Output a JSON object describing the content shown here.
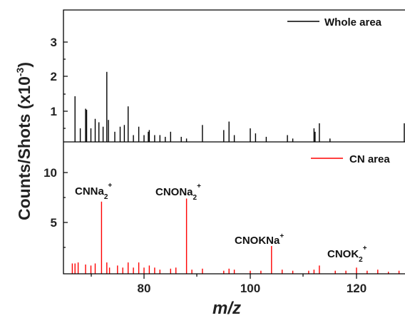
{
  "chart_data": {
    "type": "bar",
    "ylabel": "Counts/Shots (x10",
    "ylabel_sup": "-3",
    "ylabel_close": ")",
    "xlabel": "m/z",
    "xlim": [
      66,
      130
    ],
    "xticks": [
      "80",
      "100",
      "120"
    ],
    "grid": false,
    "panels": [
      {
        "name": "Whole area",
        "color": "#000000",
        "ylim": [
          0,
          3.9
        ],
        "yticks": [
          "1",
          "2",
          "3"
        ],
        "legend_label": "Whole area",
        "legend_position": "top-right",
        "x": [
          67.0,
          68.0,
          69.0,
          69.2,
          70.0,
          70.8,
          71.5,
          72.3,
          73.0,
          73.3,
          74.5,
          75.5,
          76.3,
          77.0,
          78.0,
          79.0,
          80.0,
          80.8,
          81.0,
          82.0,
          83.0,
          84.0,
          85.0,
          87.0,
          88.0,
          91.0,
          95.0,
          96.0,
          97.0,
          100.0,
          101.0,
          103.0,
          107.0,
          108.0,
          112.0,
          112.2,
          113.0,
          115.0,
          129.0
        ],
        "y": [
          1.35,
          0.4,
          0.98,
          0.95,
          0.4,
          0.68,
          0.58,
          0.45,
          2.07,
          0.65,
          0.3,
          0.45,
          0.5,
          1.05,
          0.2,
          0.45,
          0.2,
          0.3,
          0.35,
          0.2,
          0.2,
          0.15,
          0.3,
          0.15,
          0.1,
          0.5,
          0.35,
          0.6,
          0.2,
          0.4,
          0.25,
          0.15,
          0.2,
          0.1,
          0.4,
          0.3,
          0.55,
          0.1,
          0.55
        ]
      },
      {
        "name": "CN area",
        "color": "#ff0000",
        "ylim": [
          0,
          12.8
        ],
        "yticks": [
          "5",
          "10"
        ],
        "legend_label": "CN area",
        "legend_position": "top-right",
        "x": [
          66.5,
          67.0,
          67.6,
          69.0,
          70.0,
          70.8,
          72.0,
          73.0,
          73.5,
          75.0,
          76.0,
          77.0,
          78.0,
          79.0,
          80.0,
          81.0,
          82.0,
          83.0,
          85.0,
          86.0,
          88.0,
          89.0,
          91.0,
          95.0,
          96.0,
          97.0,
          100.0,
          102.0,
          104.0,
          106.0,
          108.0,
          111.0,
          112.0,
          113.0,
          116.0,
          118.0,
          120.0,
          122.0,
          124.0,
          126.0,
          128.0
        ],
        "y": [
          1.0,
          1.0,
          1.1,
          0.9,
          0.8,
          1.0,
          7.0,
          1.1,
          0.6,
          0.8,
          0.6,
          1.1,
          0.6,
          1.1,
          0.6,
          0.8,
          0.6,
          0.4,
          0.5,
          0.6,
          7.3,
          0.4,
          0.5,
          0.3,
          0.5,
          0.4,
          0.3,
          0.3,
          2.7,
          0.4,
          0.3,
          0.3,
          0.4,
          0.8,
          0.3,
          0.3,
          0.6,
          0.3,
          0.4,
          0.2,
          0.3
        ],
        "annotations": [
          {
            "text": "CNNa",
            "sub": "2",
            "sup": "+",
            "x": 72.0
          },
          {
            "text": "CNONa",
            "sub": "2",
            "sup": "+",
            "x": 88.0
          },
          {
            "text": "CNOKNa",
            "sub": "",
            "sup": "+",
            "x": 104.0
          },
          {
            "text": "CNOK",
            "sub": "2",
            "sup": "+",
            "x": 120.0
          }
        ]
      }
    ]
  }
}
